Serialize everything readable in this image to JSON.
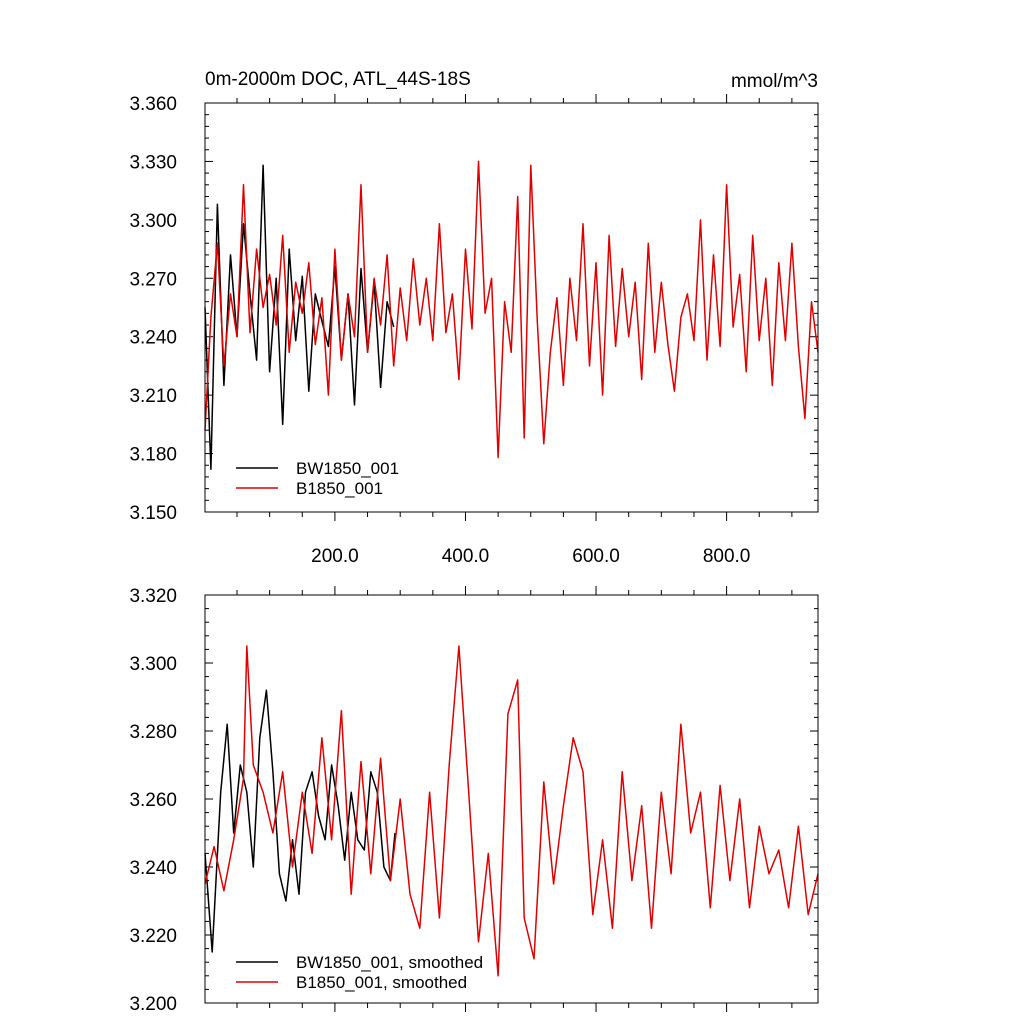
{
  "chart_data": [
    {
      "type": "line",
      "title": "0m-2000m DOC, ATL_44S-18S",
      "units": "mmol/m^3",
      "xlim": [
        1,
        940
      ],
      "ylim": [
        3.15,
        3.36
      ],
      "y_ticks": [
        3.15,
        3.18,
        3.21,
        3.24,
        3.27,
        3.3,
        3.33,
        3.36
      ],
      "y_tick_labels": [
        "3.150",
        "3.180",
        "3.210",
        "3.240",
        "3.270",
        "3.300",
        "3.330",
        "3.360"
      ],
      "x_ticks": [
        200,
        400,
        600,
        800
      ],
      "x_tick_labels": [
        "200.0",
        "400.0",
        "600.0",
        "800.0"
      ],
      "legend_position": "bottom-left",
      "series": [
        {
          "name": "BW1850_001",
          "color": "#000000",
          "x": [
            1,
            10,
            20,
            30,
            40,
            50,
            60,
            70,
            80,
            90,
            100,
            110,
            120,
            130,
            140,
            150,
            160,
            170,
            180,
            190,
            200,
            210,
            220,
            230,
            240,
            250,
            260,
            270,
            280,
            290
          ],
          "values": [
            3.255,
            3.172,
            3.308,
            3.215,
            3.282,
            3.24,
            3.298,
            3.262,
            3.228,
            3.328,
            3.222,
            3.27,
            3.195,
            3.285,
            3.238,
            3.271,
            3.212,
            3.262,
            3.248,
            3.235,
            3.276,
            3.228,
            3.262,
            3.205,
            3.275,
            3.232,
            3.268,
            3.214,
            3.258,
            3.245
          ]
        },
        {
          "name": "B1850_001",
          "color": "#e00000",
          "x": [
            1,
            10,
            20,
            30,
            40,
            50,
            60,
            70,
            80,
            90,
            100,
            110,
            120,
            130,
            140,
            150,
            160,
            170,
            180,
            190,
            200,
            210,
            220,
            230,
            240,
            250,
            260,
            270,
            280,
            290,
            300,
            310,
            320,
            330,
            340,
            350,
            360,
            370,
            380,
            390,
            400,
            410,
            420,
            430,
            440,
            450,
            460,
            470,
            480,
            490,
            500,
            510,
            520,
            530,
            540,
            550,
            560,
            570,
            580,
            590,
            600,
            610,
            620,
            630,
            640,
            650,
            660,
            670,
            680,
            690,
            700,
            710,
            720,
            730,
            740,
            750,
            760,
            770,
            780,
            790,
            800,
            810,
            820,
            830,
            840,
            850,
            860,
            870,
            880,
            890,
            900,
            910,
            920,
            930,
            940
          ],
          "values": [
            3.192,
            3.25,
            3.288,
            3.225,
            3.262,
            3.24,
            3.318,
            3.242,
            3.285,
            3.255,
            3.272,
            3.246,
            3.292,
            3.232,
            3.268,
            3.252,
            3.278,
            3.236,
            3.26,
            3.21,
            3.285,
            3.228,
            3.262,
            3.24,
            3.318,
            3.232,
            3.27,
            3.246,
            3.282,
            3.225,
            3.265,
            3.238,
            3.28,
            3.246,
            3.27,
            3.238,
            3.298,
            3.242,
            3.262,
            3.218,
            3.285,
            3.244,
            3.33,
            3.252,
            3.27,
            3.178,
            3.258,
            3.232,
            3.312,
            3.188,
            3.328,
            3.248,
            3.185,
            3.232,
            3.26,
            3.215,
            3.27,
            3.238,
            3.298,
            3.225,
            3.278,
            3.21,
            3.292,
            3.235,
            3.275,
            3.24,
            3.268,
            3.218,
            3.288,
            3.232,
            3.268,
            3.236,
            3.212,
            3.25,
            3.262,
            3.238,
            3.3,
            3.228,
            3.282,
            3.235,
            3.318,
            3.245,
            3.272,
            3.222,
            3.292,
            3.238,
            3.27,
            3.215,
            3.278,
            3.238,
            3.288,
            3.235,
            3.198,
            3.258,
            3.232
          ]
        }
      ]
    },
    {
      "type": "line",
      "title": "",
      "xlim": [
        1,
        940
      ],
      "ylim": [
        3.2,
        3.32
      ],
      "y_ticks": [
        3.2,
        3.22,
        3.24,
        3.26,
        3.28,
        3.3,
        3.32
      ],
      "y_tick_labels": [
        "3.200",
        "3.220",
        "3.240",
        "3.260",
        "3.280",
        "3.300",
        "3.320"
      ],
      "x_ticks": [
        200,
        400,
        600,
        800
      ],
      "x_tick_labels": [],
      "legend_position": "bottom-left",
      "series": [
        {
          "name": "BW1850_001, smoothed",
          "color": "#000000",
          "x": [
            1,
            12,
            25,
            35,
            45,
            55,
            65,
            75,
            85,
            95,
            105,
            115,
            125,
            135,
            145,
            155,
            165,
            175,
            185,
            195,
            205,
            215,
            225,
            235,
            245,
            255,
            265,
            275,
            285,
            292
          ],
          "values": [
            3.244,
            3.215,
            3.262,
            3.282,
            3.25,
            3.27,
            3.262,
            3.24,
            3.278,
            3.292,
            3.268,
            3.238,
            3.23,
            3.248,
            3.232,
            3.262,
            3.268,
            3.255,
            3.248,
            3.27,
            3.258,
            3.242,
            3.262,
            3.248,
            3.245,
            3.268,
            3.262,
            3.24,
            3.236,
            3.25
          ]
        },
        {
          "name": "B1850_001, smoothed",
          "color": "#e00000",
          "x": [
            1,
            15,
            30,
            45,
            60,
            65,
            75,
            90,
            105,
            120,
            135,
            150,
            165,
            180,
            195,
            210,
            225,
            240,
            255,
            270,
            285,
            300,
            315,
            330,
            345,
            360,
            375,
            390,
            405,
            420,
            435,
            450,
            465,
            480,
            490,
            505,
            520,
            535,
            550,
            565,
            580,
            595,
            610,
            625,
            640,
            655,
            670,
            685,
            700,
            715,
            730,
            745,
            760,
            775,
            790,
            805,
            820,
            835,
            850,
            865,
            880,
            895,
            910,
            925,
            940
          ],
          "values": [
            3.235,
            3.246,
            3.233,
            3.248,
            3.266,
            3.305,
            3.27,
            3.262,
            3.25,
            3.268,
            3.24,
            3.262,
            3.244,
            3.278,
            3.248,
            3.286,
            3.232,
            3.271,
            3.238,
            3.272,
            3.236,
            3.26,
            3.232,
            3.222,
            3.262,
            3.225,
            3.27,
            3.305,
            3.262,
            3.218,
            3.244,
            3.208,
            3.285,
            3.295,
            3.225,
            3.213,
            3.265,
            3.235,
            3.258,
            3.278,
            3.268,
            3.226,
            3.248,
            3.222,
            3.268,
            3.236,
            3.258,
            3.222,
            3.262,
            3.238,
            3.282,
            3.25,
            3.262,
            3.228,
            3.264,
            3.236,
            3.26,
            3.228,
            3.252,
            3.238,
            3.245,
            3.228,
            3.252,
            3.226,
            3.238
          ]
        }
      ]
    }
  ]
}
